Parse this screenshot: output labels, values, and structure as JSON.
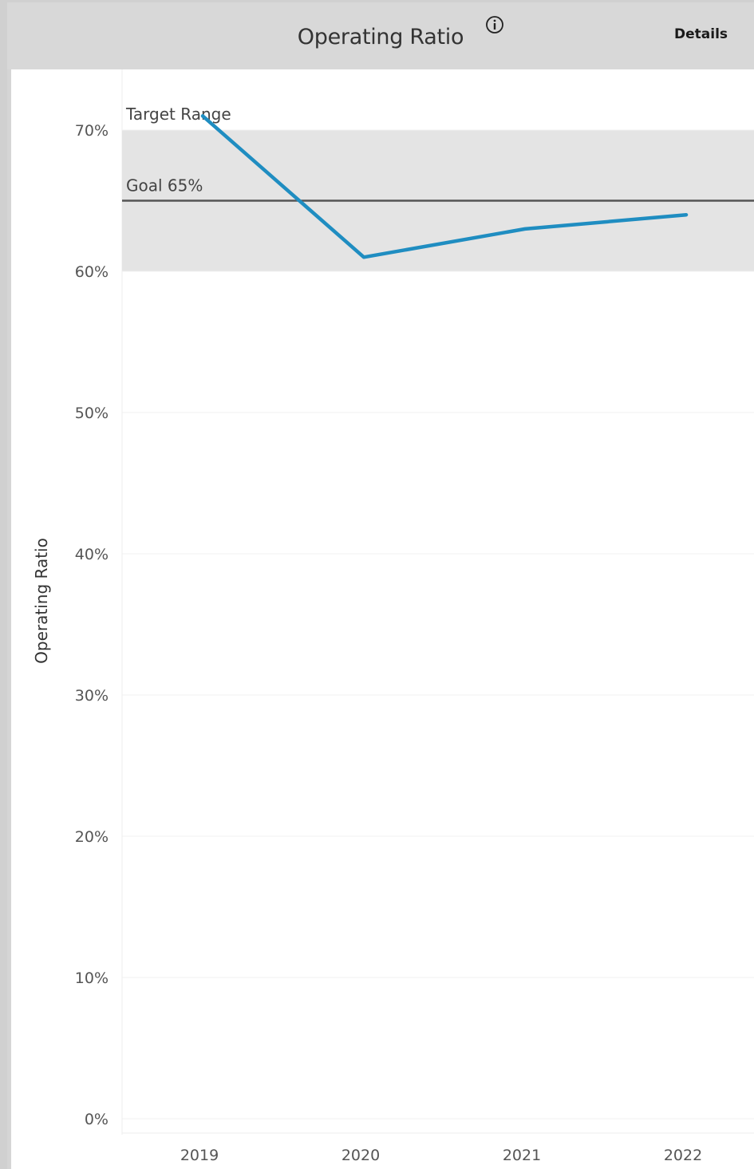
{
  "header": {
    "title": "Operating Ratio",
    "details_label": "Details",
    "info_icon": "info-circle-icon"
  },
  "colors": {
    "line": "#1f8dc1",
    "band": "#e4e4e4",
    "goal": "#555555",
    "header_bg": "#d8d8d8"
  },
  "chart_data": {
    "type": "line",
    "categories": [
      "2019",
      "2020",
      "2021",
      "2022"
    ],
    "series": [
      {
        "values": [
          71,
          61,
          63,
          64
        ]
      }
    ],
    "ylabel": "Operating Ratio",
    "xlabel": "",
    "ylim": [
      0,
      75
    ],
    "yticks": [
      "0%",
      "10%",
      "20%",
      "30%",
      "40%",
      "50%",
      "60%",
      "70%"
    ],
    "target_range": {
      "label": "Target Range",
      "low": 60,
      "high": 70
    },
    "goal": {
      "label": "Goal 65%",
      "value": 65
    },
    "grid": true
  }
}
